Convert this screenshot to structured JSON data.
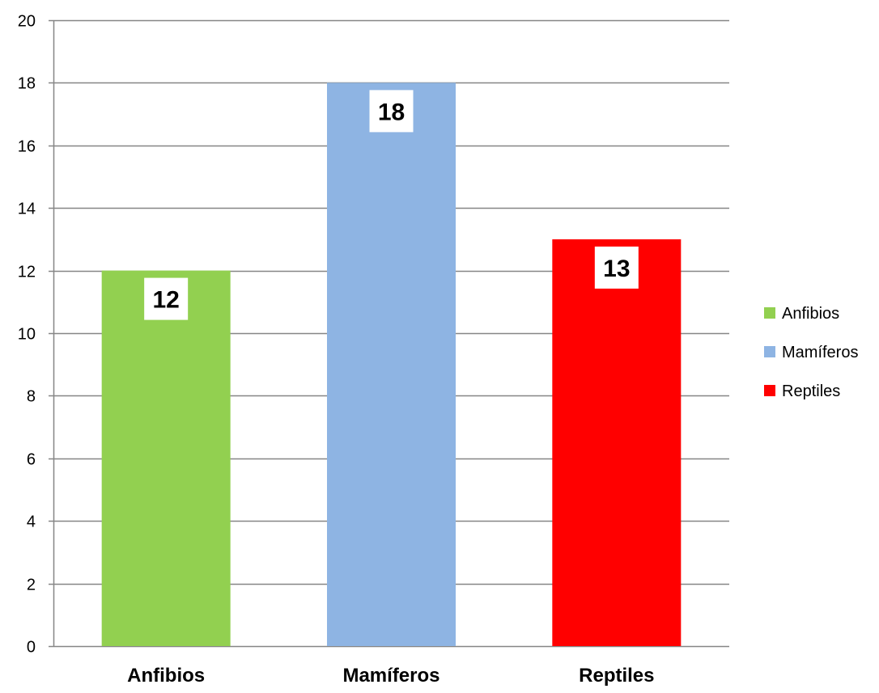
{
  "chart_data": {
    "type": "bar",
    "title": "",
    "xlabel": "",
    "ylabel": "",
    "categories": [
      "Anfibios",
      "Mamíferos",
      "Reptiles"
    ],
    "values": [
      12,
      18,
      13
    ],
    "colors": [
      "#92D050",
      "#8EB4E3",
      "#FF0000"
    ],
    "data_labels": [
      "12",
      "18",
      "13"
    ],
    "ylim": [
      0,
      20
    ],
    "yticks": [
      0,
      2,
      4,
      6,
      8,
      10,
      12,
      14,
      16,
      18,
      20
    ],
    "grid": true,
    "legend": {
      "placement": "right",
      "entries": [
        "Anfibios",
        "Mamíferos",
        "Reptiles"
      ]
    }
  }
}
